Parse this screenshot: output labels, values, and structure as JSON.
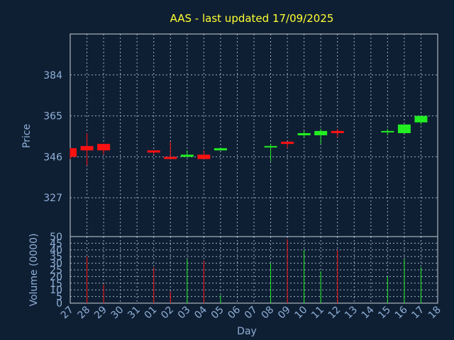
{
  "chart_data": {
    "type": "candlestick",
    "title": "AAS - last updated 17/09/2025",
    "xlabel": "Day",
    "price_ylabel": "Price",
    "volume_ylabel": "Volume (0000)",
    "price_yticks": [
      327,
      346,
      365,
      384
    ],
    "price_ylim": [
      309,
      403
    ],
    "volume_yticks": [
      0,
      5,
      10,
      15,
      20,
      25,
      30,
      35,
      40,
      45,
      50
    ],
    "volume_ylim": [
      0,
      50
    ],
    "grid": true,
    "up_color": "#22ee22",
    "down_color": "#ff1111",
    "x_labels": [
      "27",
      "28",
      "29",
      "30",
      "31",
      "01",
      "02",
      "03",
      "04",
      "05",
      "06",
      "07",
      "08",
      "09",
      "10",
      "11",
      "12",
      "13",
      "14",
      "15",
      "16",
      "17",
      "18"
    ],
    "candles": [
      {
        "day": "27",
        "open": 350,
        "high": 350,
        "low": 345,
        "close": 346
      },
      {
        "day": "28",
        "open": 351,
        "high": 357,
        "low": 342,
        "close": 349
      },
      {
        "day": "29",
        "open": 352,
        "high": 352,
        "low": 347,
        "close": 349
      },
      {
        "day": "01",
        "open": 349,
        "high": 349,
        "low": 347,
        "close": 348
      },
      {
        "day": "02",
        "open": 346,
        "high": 353,
        "low": 345,
        "close": 345
      },
      {
        "day": "03",
        "open": 346,
        "high": 349,
        "low": 346,
        "close": 347
      },
      {
        "day": "04",
        "open": 347,
        "high": 349,
        "low": 345,
        "close": 345
      },
      {
        "day": "05",
        "open": 349,
        "high": 350,
        "low": 349,
        "close": 350
      },
      {
        "day": "08",
        "open": 351,
        "high": 352,
        "low": 344,
        "close": 351
      },
      {
        "day": "09",
        "open": 353,
        "high": 353,
        "low": 350,
        "close": 352
      },
      {
        "day": "10",
        "open": 356,
        "high": 358,
        "low": 355,
        "close": 357
      },
      {
        "day": "11",
        "open": 356,
        "high": 359,
        "low": 352,
        "close": 358
      },
      {
        "day": "12",
        "open": 358,
        "high": 359,
        "low": 355,
        "close": 357
      },
      {
        "day": "15",
        "open": 358,
        "high": 359,
        "low": 356,
        "close": 358
      },
      {
        "day": "16",
        "open": 357,
        "high": 361,
        "low": 357,
        "close": 361
      },
      {
        "day": "17",
        "open": 362,
        "high": 365,
        "low": 361,
        "close": 365
      }
    ],
    "volumes": [
      {
        "day": "28",
        "value": 35,
        "color": "#ff1111"
      },
      {
        "day": "29",
        "value": 14,
        "color": "#ff1111"
      },
      {
        "day": "01",
        "value": 27,
        "color": "#ff1111"
      },
      {
        "day": "02",
        "value": 9,
        "color": "#ff1111"
      },
      {
        "day": "03",
        "value": 33,
        "color": "#22ee22"
      },
      {
        "day": "04",
        "value": 32,
        "color": "#ff1111"
      },
      {
        "day": "05",
        "value": 6,
        "color": "#22ee22"
      },
      {
        "day": "08",
        "value": 30,
        "color": "#22ee22"
      },
      {
        "day": "09",
        "value": 48,
        "color": "#ff1111"
      },
      {
        "day": "10",
        "value": 40,
        "color": "#22ee22"
      },
      {
        "day": "11",
        "value": 24,
        "color": "#22ee22"
      },
      {
        "day": "12",
        "value": 40,
        "color": "#ff1111"
      },
      {
        "day": "15",
        "value": 20,
        "color": "#22ee22"
      },
      {
        "day": "16",
        "value": 33,
        "color": "#22ee22"
      },
      {
        "day": "17",
        "value": 27,
        "color": "#22ee22"
      }
    ]
  }
}
